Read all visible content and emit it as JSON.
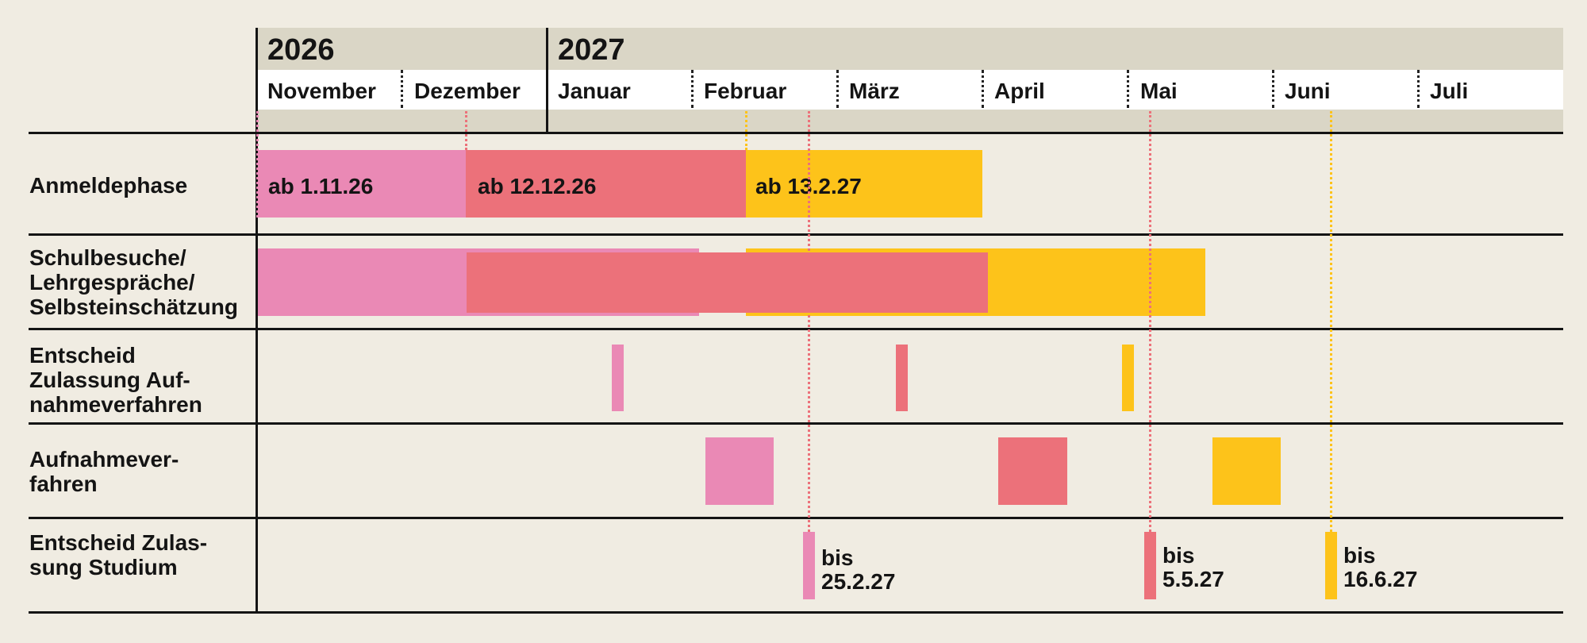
{
  "colors": {
    "pink": "#ea89b5",
    "red": "#ec717a",
    "yellow": "#fdc31a",
    "background": "#f0ece2",
    "year_band": "#dad6c6"
  },
  "header": {
    "years": [
      "2026",
      "2027"
    ],
    "months": [
      "November",
      "Dezember",
      "Januar",
      "Februar",
      "März",
      "April",
      "Mai",
      "Juni",
      "Juli"
    ]
  },
  "rows": {
    "anmeldephase": "Anmeldephase",
    "schulbesuche": [
      "Schulbesuche/",
      "Lehrgespräche/",
      "Selbsteinschätzung"
    ],
    "entscheid_aufnahme": [
      "Entscheid",
      "Zulassung Auf-",
      "nahmeverfahren"
    ],
    "aufnahmeverfahren": [
      "Aufnahmever-",
      "fahren"
    ],
    "entscheid_studium": [
      "Entscheid Zulas-",
      "sung Studium"
    ]
  },
  "phases": {
    "pink_start": "ab 1.11.26",
    "red_start": "ab 12.12.26",
    "yellow_start": "ab 13.2.27"
  },
  "deadlines": {
    "pink": [
      "bis",
      "25.2.27"
    ],
    "red": [
      "bis",
      "5.5.27"
    ],
    "yellow": [
      "bis",
      "16.6.27"
    ]
  }
}
